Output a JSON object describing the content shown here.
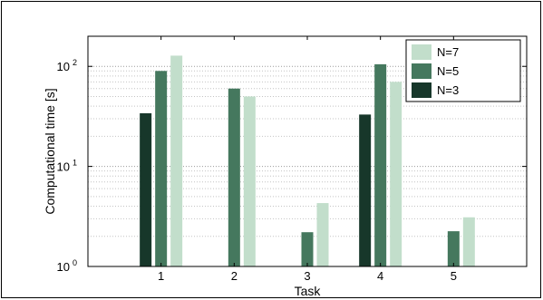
{
  "chart_data": {
    "type": "bar",
    "categories": [
      "1",
      "2",
      "3",
      "4",
      "5"
    ],
    "series": [
      {
        "name": "N=3",
        "color": "#17372a",
        "values": [
          34,
          null,
          null,
          33,
          null
        ]
      },
      {
        "name": "N=5",
        "color": "#45785e",
        "values": [
          90,
          60,
          2.2,
          105,
          2.25
        ]
      },
      {
        "name": "N=7",
        "color": "#c2decb",
        "values": [
          128,
          50,
          4.3,
          70,
          3.1
        ]
      }
    ],
    "xlabel": "Task",
    "ylabel": "Computational time [s]",
    "yscale": "log",
    "ylim": [
      1,
      200
    ],
    "yticks": [
      {
        "value": 1,
        "base": "10",
        "exp": "0"
      },
      {
        "value": 10,
        "base": "10",
        "exp": "1"
      },
      {
        "value": 100,
        "base": "10",
        "exp": "2"
      }
    ],
    "legend": {
      "placement": "top-right",
      "order": [
        "N=7",
        "N=5",
        "N=3"
      ]
    },
    "grid": "y-major-and-minor-dotted"
  }
}
